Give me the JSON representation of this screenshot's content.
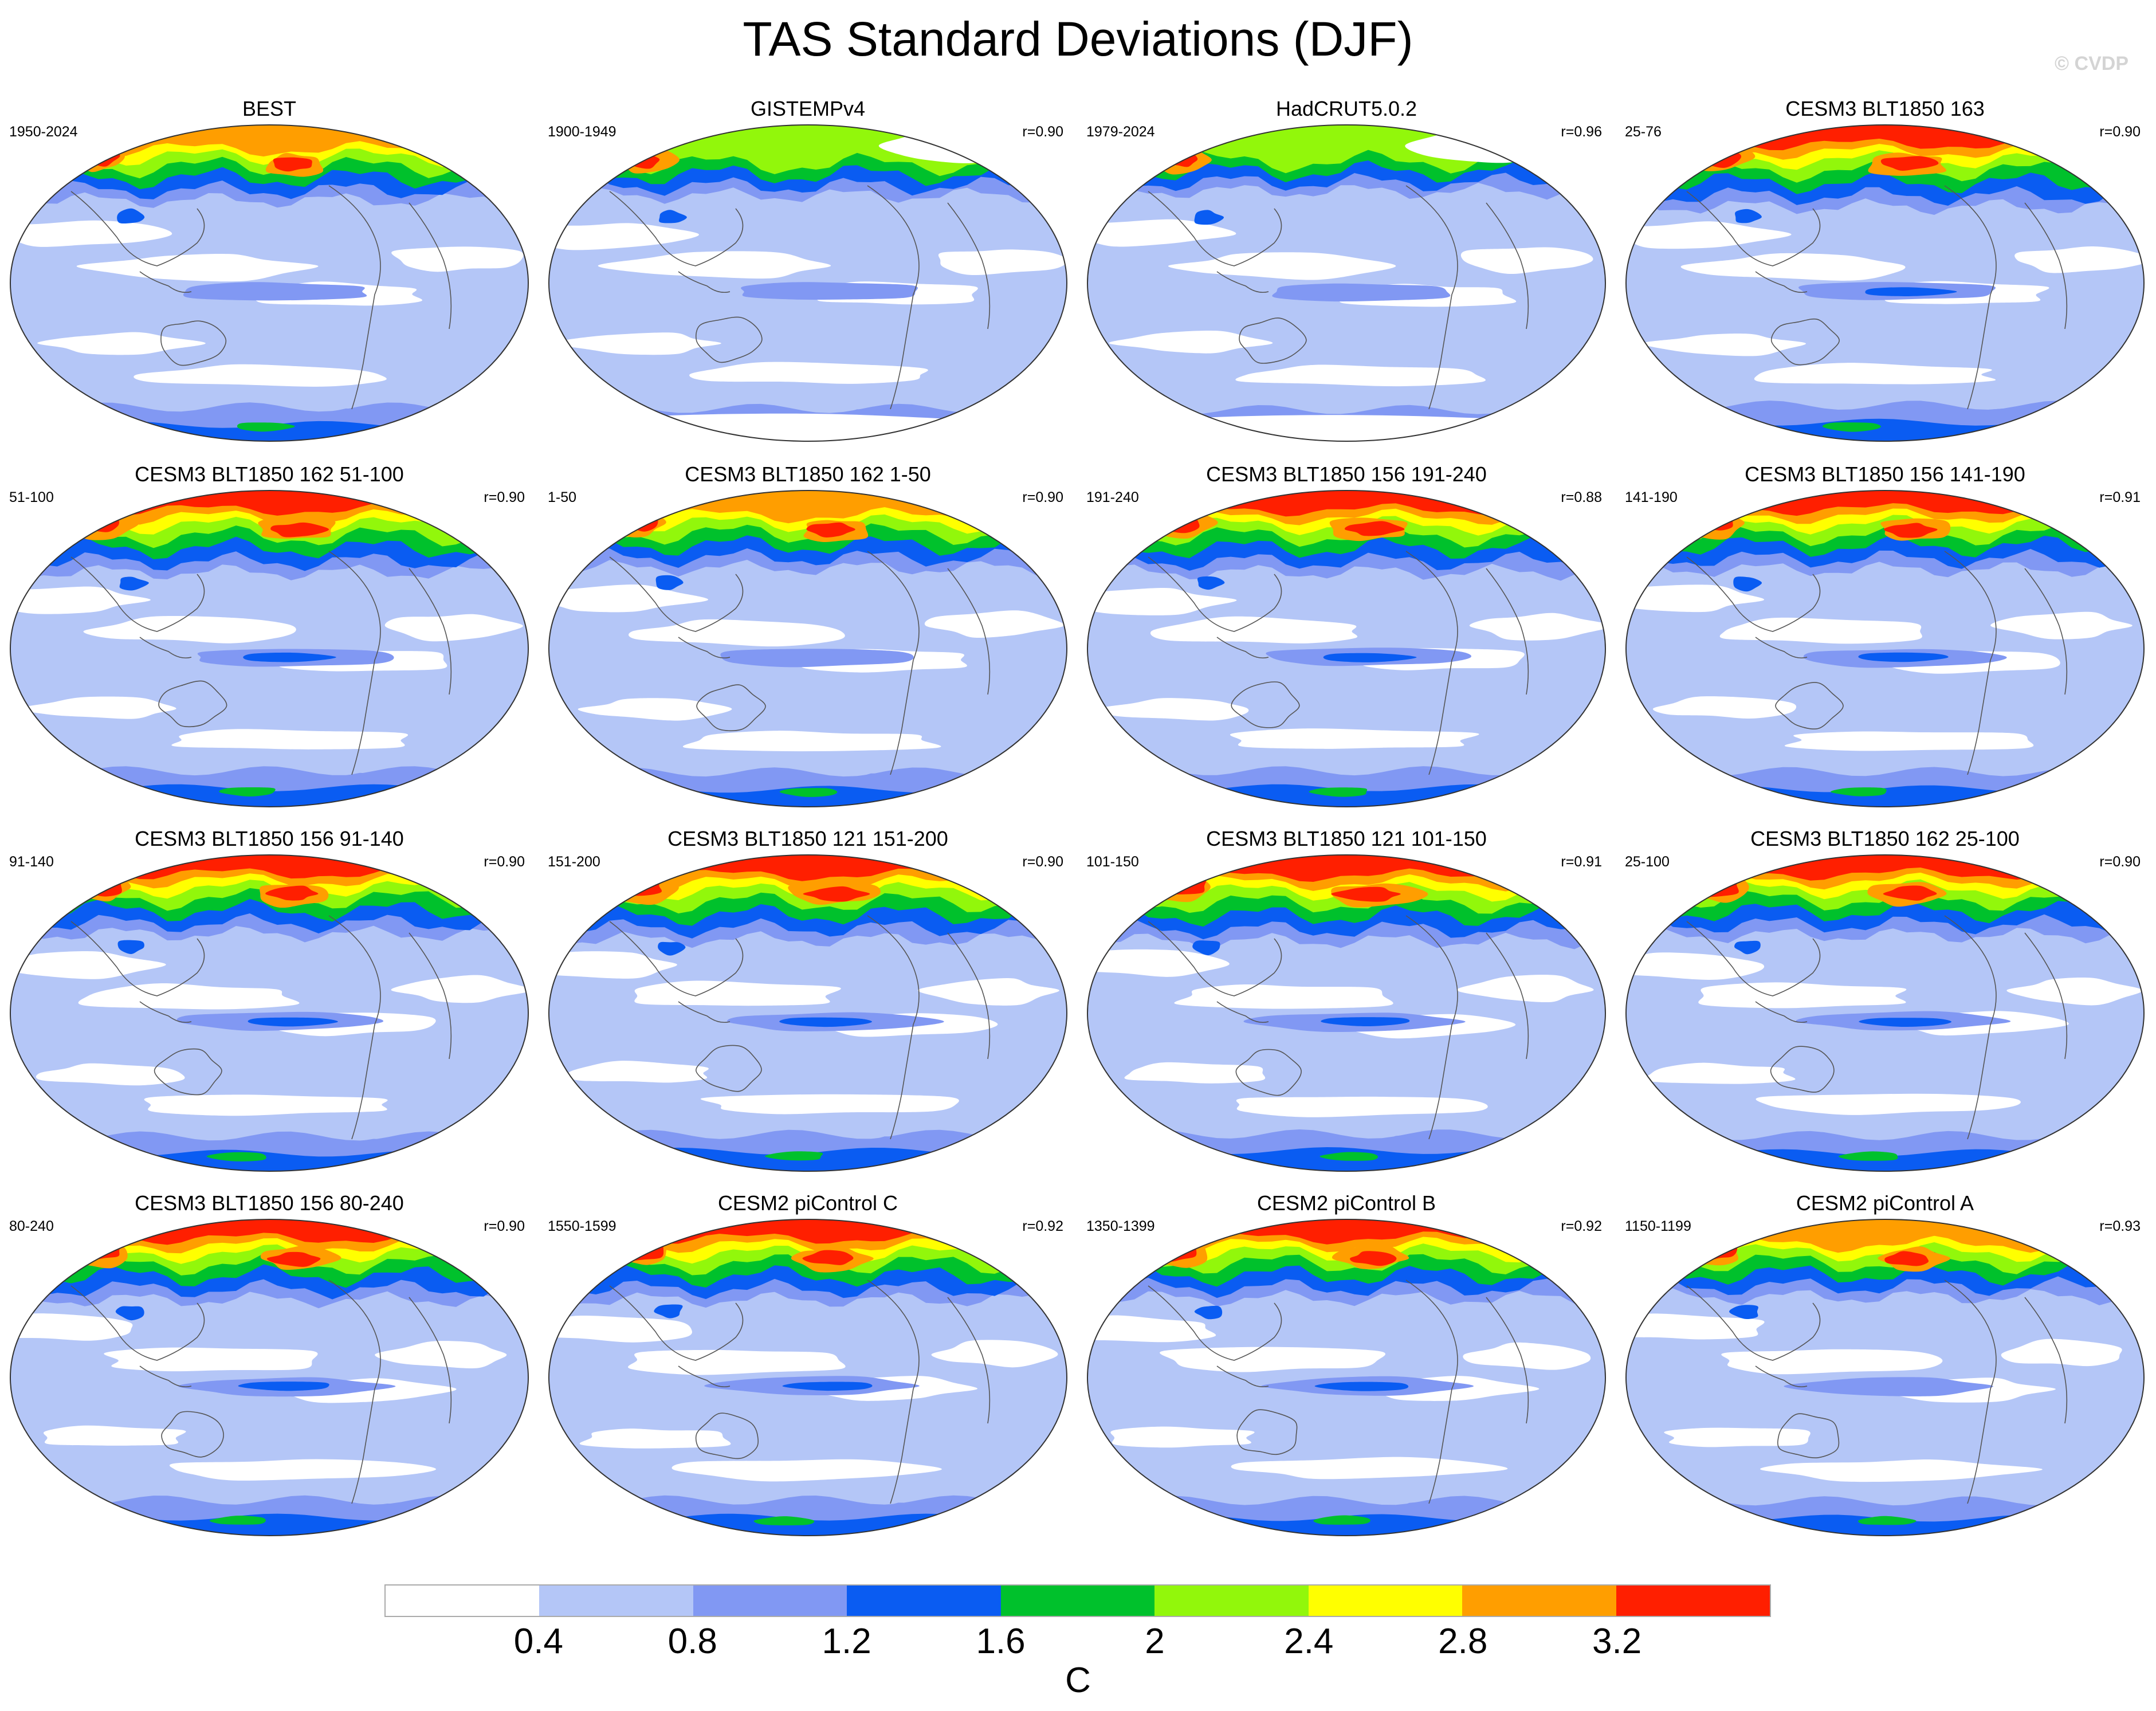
{
  "title": "TAS Standard Deviations (DJF)",
  "watermark": "© CVDP",
  "colors": {
    "white": "#ffffff",
    "light_blue": "#b4c6f7",
    "mid_blue": "#8198f3",
    "blue": "#0a5cf2",
    "green": "#00c12c",
    "lime": "#92f70b",
    "yellow": "#ffff00",
    "orange": "#ff9e00",
    "red": "#ff1f00",
    "coast": "#555555",
    "outline": "#333333"
  },
  "colorbar": {
    "fills": [
      "#ffffff",
      "#b4c6f7",
      "#8198f3",
      "#0a5cf2",
      "#00c12c",
      "#92f70b",
      "#ffff00",
      "#ff9e00",
      "#ff1f00"
    ],
    "ticks": [
      "0.4",
      "0.8",
      "1.2",
      "1.6",
      "2",
      "2.4",
      "2.8",
      "3.2"
    ],
    "unit": "C"
  },
  "panels": [
    {
      "title": "BEST",
      "period": "1950-2024",
      "corr": "",
      "intensity": 0.62,
      "obs_gaps": false
    },
    {
      "title": "GISTEMPv4",
      "period": "1900-1949",
      "corr": "r=0.90",
      "intensity": 0.45,
      "obs_gaps": true
    },
    {
      "title": "HadCRUT5.0.2",
      "period": "1979-2024",
      "corr": "r=0.96",
      "intensity": 0.3,
      "obs_gaps": true
    },
    {
      "title": "CESM3 BLT1850 163",
      "period": "25-76",
      "corr": "r=0.90",
      "intensity": 0.85,
      "obs_gaps": false
    },
    {
      "title": "CESM3 BLT1850 162 51-100",
      "period": "51-100",
      "corr": "r=0.90",
      "intensity": 0.85,
      "obs_gaps": false
    },
    {
      "title": "CESM3 BLT1850 162 1-50",
      "period": "1-50",
      "corr": "r=0.90",
      "intensity": 0.7,
      "obs_gaps": false
    },
    {
      "title": "CESM3 BLT1850 156 191-240",
      "period": "191-240",
      "corr": "r=0.88",
      "intensity": 0.85,
      "obs_gaps": false
    },
    {
      "title": "CESM3 BLT1850 156 141-190",
      "period": "141-190",
      "corr": "r=0.91",
      "intensity": 0.75,
      "obs_gaps": false
    },
    {
      "title": "CESM3 BLT1850 156 91-140",
      "period": "91-140",
      "corr": "r=0.90",
      "intensity": 0.75,
      "obs_gaps": false
    },
    {
      "title": "CESM3 BLT1850 121 151-200",
      "period": "151-200",
      "corr": "r=0.90",
      "intensity": 0.95,
      "obs_gaps": false
    },
    {
      "title": "CESM3 BLT1850 121 101-150",
      "period": "101-150",
      "corr": "r=0.91",
      "intensity": 1.0,
      "obs_gaps": false
    },
    {
      "title": "CESM3 BLT1850 162 25-100",
      "period": "25-100",
      "corr": "r=0.90",
      "intensity": 0.8,
      "obs_gaps": false
    },
    {
      "title": "CESM3 BLT1850 156 80-240",
      "period": "80-240",
      "corr": "r=0.90",
      "intensity": 0.8,
      "obs_gaps": false
    },
    {
      "title": "CESM2 piControl C",
      "period": "1550-1599",
      "corr": "r=0.92",
      "intensity": 0.8,
      "obs_gaps": false
    },
    {
      "title": "CESM2 piControl B",
      "period": "1350-1399",
      "corr": "r=0.92",
      "intensity": 0.75,
      "obs_gaps": false
    },
    {
      "title": "CESM2 piControl A",
      "period": "1150-1199",
      "corr": "r=0.93",
      "intensity": 0.7,
      "obs_gaps": false
    }
  ]
}
